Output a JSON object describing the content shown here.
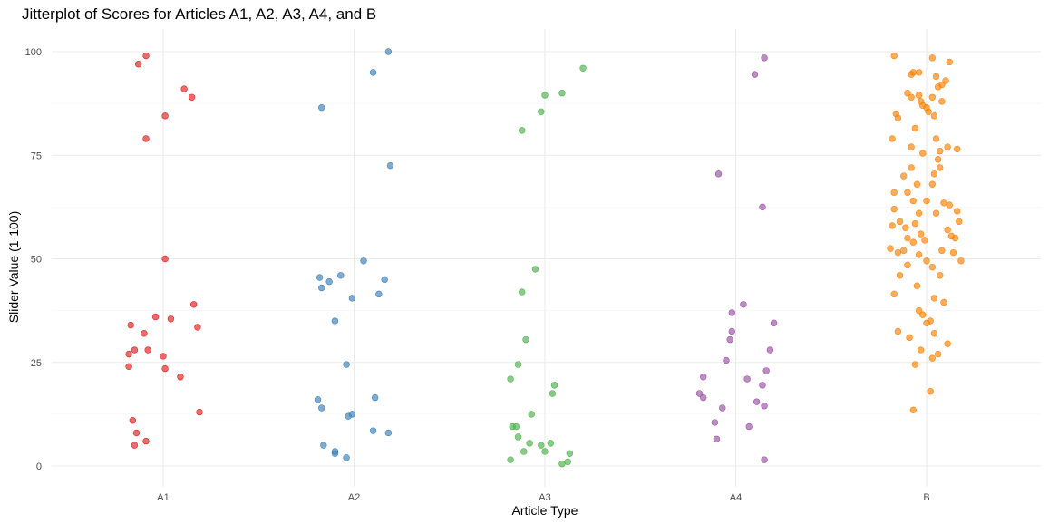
{
  "chart_data": {
    "type": "scatter",
    "title": "Jitterplot of Scores for Articles A1, A2, A3, A4, and B",
    "xlabel": "Article Type",
    "ylabel": "Slider Value (1-100)",
    "categories": [
      "A1",
      "A2",
      "A3",
      "A4",
      "B"
    ],
    "ylim": [
      -5,
      105
    ],
    "y_ticks": [
      0,
      25,
      50,
      75,
      100
    ],
    "grid": true,
    "legend": "none",
    "colors": {
      "A1": "#E41A1C",
      "A2": "#377EB8",
      "A3": "#4DAF4A",
      "A4": "#984EA3",
      "B": "#FF7F00"
    },
    "series": [
      {
        "category": "A1",
        "points": [
          [
            -0.09,
            99
          ],
          [
            -0.13,
            97
          ],
          [
            0.11,
            91
          ],
          [
            0.15,
            89
          ],
          [
            0.01,
            84.5
          ],
          [
            -0.09,
            79
          ],
          [
            0.01,
            50
          ],
          [
            0.16,
            39
          ],
          [
            -0.04,
            36
          ],
          [
            0.04,
            35.5
          ],
          [
            -0.17,
            34
          ],
          [
            0.18,
            33.5
          ],
          [
            -0.1,
            32
          ],
          [
            -0.15,
            28
          ],
          [
            -0.08,
            28
          ],
          [
            -0.18,
            27
          ],
          [
            0.0,
            26.5
          ],
          [
            -0.18,
            24
          ],
          [
            0.01,
            23.5
          ],
          [
            0.09,
            21.5
          ],
          [
            0.19,
            13
          ],
          [
            -0.16,
            11
          ],
          [
            -0.14,
            8
          ],
          [
            -0.09,
            6
          ],
          [
            -0.15,
            5
          ]
        ]
      },
      {
        "category": "A2",
        "points": [
          [
            0.18,
            100
          ],
          [
            0.1,
            95
          ],
          [
            -0.17,
            86.5
          ],
          [
            0.19,
            72.5
          ],
          [
            0.05,
            49.5
          ],
          [
            -0.18,
            45.5
          ],
          [
            -0.13,
            44.5
          ],
          [
            -0.07,
            46
          ],
          [
            0.16,
            45
          ],
          [
            -0.17,
            43
          ],
          [
            0.13,
            41.5
          ],
          [
            -0.01,
            40.5
          ],
          [
            -0.1,
            35
          ],
          [
            -0.04,
            24.5
          ],
          [
            0.11,
            16.5
          ],
          [
            -0.19,
            16
          ],
          [
            -0.17,
            14
          ],
          [
            -0.03,
            12
          ],
          [
            -0.01,
            12.5
          ],
          [
            0.1,
            8.5
          ],
          [
            0.18,
            8
          ],
          [
            -0.16,
            5
          ],
          [
            -0.1,
            3.5
          ],
          [
            -0.1,
            3
          ],
          [
            -0.04,
            2
          ]
        ]
      },
      {
        "category": "A3",
        "points": [
          [
            0.2,
            96
          ],
          [
            0.09,
            90
          ],
          [
            0.0,
            89.5
          ],
          [
            -0.02,
            85.5
          ],
          [
            -0.12,
            81
          ],
          [
            -0.05,
            47.5
          ],
          [
            -0.12,
            42
          ],
          [
            -0.1,
            30.5
          ],
          [
            -0.14,
            24.5
          ],
          [
            -0.18,
            21
          ],
          [
            0.05,
            19.5
          ],
          [
            0.04,
            17.5
          ],
          [
            -0.07,
            12.5
          ],
          [
            -0.17,
            9.5
          ],
          [
            -0.15,
            9.5
          ],
          [
            -0.14,
            7
          ],
          [
            -0.08,
            5.5
          ],
          [
            0.03,
            5.5
          ],
          [
            -0.02,
            5
          ],
          [
            -0.11,
            3.5
          ],
          [
            0.0,
            3.5
          ],
          [
            0.13,
            3
          ],
          [
            -0.18,
            1.5
          ],
          [
            0.12,
            1
          ],
          [
            0.09,
            0.5
          ]
        ]
      },
      {
        "category": "A4",
        "points": [
          [
            0.15,
            98.5
          ],
          [
            0.1,
            94.5
          ],
          [
            -0.09,
            70.5
          ],
          [
            0.14,
            62.5
          ],
          [
            0.04,
            39
          ],
          [
            -0.02,
            37
          ],
          [
            0.2,
            34.5
          ],
          [
            -0.02,
            32.5
          ],
          [
            -0.03,
            30.5
          ],
          [
            0.18,
            28
          ],
          [
            -0.05,
            25.5
          ],
          [
            0.16,
            23
          ],
          [
            -0.17,
            21.5
          ],
          [
            0.06,
            21
          ],
          [
            0.14,
            19.5
          ],
          [
            -0.19,
            17.5
          ],
          [
            -0.17,
            16.5
          ],
          [
            0.11,
            15.5
          ],
          [
            -0.07,
            14
          ],
          [
            0.15,
            14.5
          ],
          [
            -0.11,
            10.5
          ],
          [
            0.07,
            9.5
          ],
          [
            -0.1,
            6.5
          ],
          [
            0.15,
            1.5
          ]
        ]
      },
      {
        "category": "B",
        "points": [
          [
            -0.17,
            99
          ],
          [
            0.03,
            98.5
          ],
          [
            0.12,
            97.5
          ],
          [
            -0.07,
            95
          ],
          [
            -0.04,
            95
          ],
          [
            -0.08,
            94.5
          ],
          [
            0.05,
            94
          ],
          [
            0.1,
            93
          ],
          [
            0.08,
            92
          ],
          [
            0.06,
            91.5
          ],
          [
            -0.1,
            90
          ],
          [
            -0.04,
            89.5
          ],
          [
            -0.08,
            89
          ],
          [
            0.03,
            89
          ],
          [
            -0.03,
            88
          ],
          [
            0.08,
            88
          ],
          [
            -0.02,
            87
          ],
          [
            0.0,
            86.5
          ],
          [
            -0.16,
            85
          ],
          [
            0.01,
            85.5
          ],
          [
            0.04,
            84.5
          ],
          [
            -0.15,
            84
          ],
          [
            -0.06,
            81.5
          ],
          [
            0.11,
            77
          ],
          [
            -0.18,
            79
          ],
          [
            0.05,
            79
          ],
          [
            -0.08,
            77
          ],
          [
            0.07,
            76
          ],
          [
            0.16,
            76.5
          ],
          [
            -0.02,
            75.5
          ],
          [
            0.06,
            74
          ],
          [
            -0.08,
            72
          ],
          [
            0.07,
            72
          ],
          [
            -0.12,
            70
          ],
          [
            0.04,
            70.5
          ],
          [
            -0.05,
            68
          ],
          [
            0.03,
            68
          ],
          [
            -0.17,
            66
          ],
          [
            -0.1,
            66
          ],
          [
            -0.07,
            64
          ],
          [
            0.0,
            64
          ],
          [
            0.09,
            63.5
          ],
          [
            0.12,
            63
          ],
          [
            -0.17,
            62
          ],
          [
            -0.04,
            61
          ],
          [
            0.05,
            61
          ],
          [
            0.16,
            61.5
          ],
          [
            -0.14,
            59
          ],
          [
            0.17,
            59
          ],
          [
            -0.06,
            58.5
          ],
          [
            -0.18,
            58
          ],
          [
            -0.11,
            57.5
          ],
          [
            0.11,
            57
          ],
          [
            -0.03,
            56
          ],
          [
            0.13,
            55.5
          ],
          [
            -0.1,
            55
          ],
          [
            0.15,
            55
          ],
          [
            -0.07,
            54
          ],
          [
            -0.01,
            54.5
          ],
          [
            -0.19,
            52.5
          ],
          [
            -0.12,
            52
          ],
          [
            0.08,
            52
          ],
          [
            -0.15,
            51.5
          ],
          [
            0.14,
            51.5
          ],
          [
            -0.04,
            51
          ],
          [
            0.0,
            49.5
          ],
          [
            0.18,
            49.5
          ],
          [
            -0.1,
            48.5
          ],
          [
            0.03,
            48
          ],
          [
            0.07,
            46
          ],
          [
            -0.14,
            46
          ],
          [
            -0.17,
            41.5
          ],
          [
            -0.05,
            43.5
          ],
          [
            0.04,
            40.5
          ],
          [
            0.09,
            39.5
          ],
          [
            -0.04,
            37.5
          ],
          [
            -0.02,
            36.5
          ],
          [
            0.02,
            35
          ],
          [
            0.0,
            34.5
          ],
          [
            -0.15,
            32.5
          ],
          [
            0.04,
            32
          ],
          [
            -0.09,
            31
          ],
          [
            0.11,
            29.5
          ],
          [
            -0.03,
            28
          ],
          [
            0.06,
            27
          ],
          [
            0.03,
            26
          ],
          [
            -0.06,
            24.5
          ],
          [
            0.02,
            18
          ],
          [
            -0.07,
            13.5
          ]
        ]
      }
    ]
  }
}
